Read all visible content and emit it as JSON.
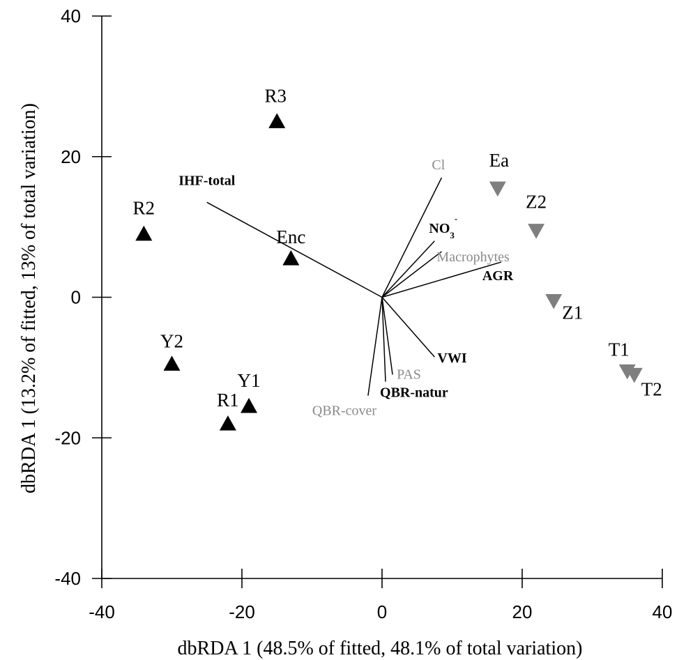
{
  "chart_data": {
    "type": "scatter",
    "title": "",
    "xlabel": "dbRDA 1 (48.5% of fitted, 48.1% of total variation)",
    "ylabel": "dbRDA 1 (13.2% of fitted, 13% of total variation)",
    "xlim": [
      -40,
      40
    ],
    "ylim": [
      -40,
      40
    ],
    "xticks": [
      -40,
      -20,
      0,
      20,
      40
    ],
    "yticks": [
      40,
      20,
      0,
      -20,
      -40
    ],
    "grid": false,
    "colors": {
      "group_a": "#000000",
      "group_b": "#7f7f7f",
      "vector_bold": "#000000",
      "vector_grey": "#8a8a8a"
    },
    "series": [
      {
        "marker": "triangle-up",
        "color": "#000000",
        "points": [
          {
            "label": "R3",
            "x": -15,
            "y": 25
          },
          {
            "label": "R2",
            "x": -34,
            "y": 9
          },
          {
            "label": "Enc",
            "x": -13,
            "y": 5.5
          },
          {
            "label": "Y2",
            "x": -30,
            "y": -9.5
          },
          {
            "label": "Y1",
            "x": -19,
            "y": -15.5
          },
          {
            "label": "R1",
            "x": -22,
            "y": -18
          }
        ]
      },
      {
        "marker": "triangle-down",
        "color": "#7f7f7f",
        "points": [
          {
            "label": "Ea",
            "x": 16.5,
            "y": 15.5
          },
          {
            "label": "Z2",
            "x": 22,
            "y": 9.5
          },
          {
            "label": "Z1",
            "x": 24.5,
            "y": -0.5
          },
          {
            "label": "T1",
            "x": 35,
            "y": -10.5
          },
          {
            "label": "T2",
            "x": 36,
            "y": -11
          }
        ]
      }
    ],
    "vectors": [
      {
        "label": "IHF-total",
        "x": -25,
        "y": 13.5,
        "bold": true
      },
      {
        "label": "Cl",
        "x": 8.5,
        "y": 17,
        "bold": false
      },
      {
        "label": "NO",
        "sub": "3",
        "sup": "-",
        "x": 7.5,
        "y": 8,
        "bold": true
      },
      {
        "label": "Macrophytes",
        "x": 8.5,
        "y": 6.5,
        "bold": false
      },
      {
        "label": "AGR",
        "x": 17,
        "y": 5,
        "bold": true
      },
      {
        "label": "VWI",
        "x": 7.5,
        "y": -8.5,
        "bold": true
      },
      {
        "label": "PAS",
        "x": 1.5,
        "y": -11,
        "bold": false
      },
      {
        "label": "QBR-natur",
        "x": 0.5,
        "y": -12,
        "bold": true
      },
      {
        "label": "QBR-cover",
        "x": -2,
        "y": -14,
        "bold": false
      }
    ]
  }
}
